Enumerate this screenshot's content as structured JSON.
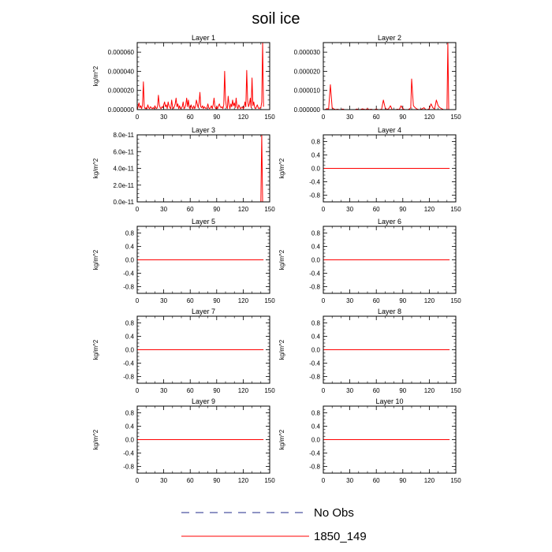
{
  "title": "soil ice",
  "legend": {
    "items": [
      {
        "label": "No Obs",
        "color": "#1f2a8a",
        "dash": "dashed"
      },
      {
        "label": "1850_149",
        "color": "#ff0000",
        "dash": "solid"
      }
    ]
  },
  "chart_data": [
    {
      "type": "line",
      "title": "Layer 1",
      "ylabel": "kg/m^2",
      "xlim": [
        0,
        150
      ],
      "xticks": [
        0,
        30,
        60,
        90,
        120,
        150
      ],
      "ylim": [
        0,
        7e-05
      ],
      "yticks": [
        0,
        2e-05,
        4e-05,
        6e-05
      ],
      "ytick_labels": [
        "0.000000",
        "0.000020",
        "0.000040",
        "0.000060"
      ],
      "series": [
        {
          "name": "1850_149",
          "color": "#ff0000",
          "x": [
            0,
            1,
            2,
            3,
            4,
            5,
            6,
            7,
            8,
            9,
            10,
            11,
            12,
            13,
            14,
            15,
            16,
            17,
            18,
            19,
            20,
            21,
            22,
            23,
            24,
            25,
            26,
            27,
            28,
            29,
            30,
            31,
            32,
            33,
            34,
            35,
            36,
            37,
            38,
            39,
            40,
            41,
            42,
            43,
            44,
            45,
            46,
            47,
            48,
            49,
            50,
            51,
            52,
            53,
            54,
            55,
            56,
            57,
            58,
            59,
            60,
            61,
            62,
            63,
            64,
            65,
            66,
            67,
            68,
            69,
            70,
            71,
            72,
            73,
            74,
            75,
            76,
            77,
            78,
            79,
            80,
            81,
            82,
            83,
            84,
            85,
            86,
            87,
            88,
            89,
            90,
            91,
            92,
            93,
            94,
            95,
            96,
            97,
            98,
            99,
            100,
            101,
            102,
            103,
            104,
            105,
            106,
            107,
            108,
            109,
            110,
            111,
            112,
            113,
            114,
            115,
            116,
            117,
            118,
            119,
            120,
            121,
            122,
            123,
            124,
            125,
            126,
            127,
            128,
            129,
            130,
            131,
            132,
            133,
            134,
            135,
            136,
            137,
            138,
            139,
            140,
            141,
            142,
            143
          ],
          "y": [
            0.0,
            3e-06,
            7e-06,
            2e-06,
            4e-06,
            1e-06,
            5e-06,
            2.9e-05,
            3e-06,
            1e-06,
            2e-06,
            1e-06,
            5e-06,
            2e-06,
            1e-06,
            3e-06,
            2e-06,
            1e-06,
            2e-06,
            1e-06,
            4e-06,
            2e-06,
            1e-06,
            3e-06,
            1.5e-05,
            5e-06,
            2e-06,
            1e-06,
            3e-06,
            2e-06,
            5e-06,
            8e-06,
            3e-06,
            5e-06,
            1e-06,
            8e-06,
            4e-06,
            2e-06,
            1e-06,
            1e-05,
            3e-06,
            1e-06,
            3e-06,
            6e-06,
            1.2e-05,
            3e-06,
            6e-06,
            1e-06,
            4e-06,
            1e-06,
            2e-06,
            3e-06,
            8e-06,
            1e-06,
            2e-06,
            5e-06,
            1.2e-05,
            3e-06,
            1e-05,
            2e-06,
            1e-06,
            5e-06,
            2e-06,
            1e-06,
            4e-06,
            1e-06,
            3e-06,
            1e-05,
            6e-06,
            2e-06,
            7e-06,
            1.8e-05,
            3e-06,
            2e-06,
            4e-06,
            1e-06,
            3e-06,
            2e-06,
            1e-06,
            2e-06,
            6e-06,
            2e-06,
            1e-06,
            2e-06,
            4e-06,
            1e-06,
            5e-06,
            1.2e-05,
            3e-06,
            1e-06,
            3e-06,
            1e-06,
            4e-06,
            6e-06,
            3e-06,
            2e-06,
            3e-06,
            1e-06,
            5e-06,
            4e-05,
            1e-05,
            3e-06,
            1e-06,
            1.4e-05,
            5e-06,
            1e-06,
            6e-06,
            3e-06,
            1e-05,
            4e-06,
            7e-06,
            2e-06,
            1.2e-05,
            3e-06,
            1e-06,
            5e-06,
            3e-06,
            1e-06,
            2e-06,
            3e-06,
            1e-06,
            2e-06,
            8e-06,
            3e-06,
            4.1e-05,
            1e-05,
            3e-06,
            6e-06,
            1.2e-05,
            2e-06,
            3.3e-05,
            4e-06,
            8e-06,
            2e-06,
            1e-06,
            3e-06,
            5e-06,
            2e-06,
            1e-06,
            2e-06,
            2e-06,
            8e-06,
            7e-05,
            3e-06
          ]
        }
      ]
    },
    {
      "type": "line",
      "title": "Layer 2",
      "ylabel": "",
      "xlim": [
        0,
        150
      ],
      "xticks": [
        0,
        30,
        60,
        90,
        120,
        150
      ],
      "ylim": [
        0,
        3.5e-05
      ],
      "yticks": [
        0,
        1e-05,
        2e-05,
        3e-05
      ],
      "ytick_labels": [
        "0.000000",
        "0.000010",
        "0.000020",
        "0.000030"
      ],
      "series": [
        {
          "name": "1850_149",
          "color": "#ff0000",
          "x": [
            0,
            2,
            4,
            6,
            8,
            10,
            12,
            14,
            16,
            18,
            20,
            22,
            24,
            26,
            28,
            30,
            32,
            34,
            36,
            38,
            40,
            42,
            44,
            46,
            48,
            50,
            52,
            54,
            56,
            58,
            60,
            62,
            64,
            66,
            68,
            70,
            72,
            74,
            76,
            78,
            80,
            82,
            84,
            86,
            88,
            90,
            92,
            94,
            96,
            98,
            99,
            100,
            102,
            104,
            106,
            108,
            110,
            112,
            114,
            116,
            118,
            120,
            122,
            124,
            126,
            128,
            130,
            132,
            134,
            136,
            138,
            140,
            141,
            142,
            143
          ],
          "y": [
            0,
            0,
            5e-07,
            3e-07,
            1.3e-05,
            1e-06,
            3e-07,
            0,
            2e-07,
            0,
            0,
            3e-07,
            0,
            0,
            0,
            0,
            0,
            0,
            0,
            3e-07,
            0,
            0,
            4e-07,
            2e-07,
            0,
            5e-07,
            0,
            2e-07,
            0,
            0,
            3e-07,
            0,
            0,
            2e-07,
            5e-06,
            1e-06,
            0,
            5e-07,
            2e-06,
            0,
            0,
            0,
            2e-07,
            0,
            2e-06,
            5e-07,
            0,
            0,
            0,
            5e-07,
            1e-06,
            1.6e-05,
            2e-06,
            1e-06,
            3e-07,
            0,
            0,
            5e-07,
            1e-06,
            0,
            0,
            5e-07,
            3e-06,
            1e-06,
            3e-07,
            5e-06,
            2e-06,
            1e-06,
            5e-07,
            0,
            0,
            0,
            3.5e-05,
            0,
            0
          ]
        }
      ]
    },
    {
      "type": "line",
      "title": "Layer 3",
      "ylabel": "kg/m^2",
      "xlim": [
        0,
        150
      ],
      "xticks": [
        0,
        30,
        60,
        90,
        120,
        150
      ],
      "ylim": [
        0,
        8e-11
      ],
      "yticks": [
        0,
        2e-11,
        4e-11,
        6e-11,
        8e-11
      ],
      "ytick_labels": [
        "0.0e-11",
        "2.0e-11",
        "4.0e-11",
        "6.0e-11",
        "8.0e-11"
      ],
      "series": [
        {
          "name": "1850_149",
          "color": "#ff0000",
          "x": [
            0,
            139,
            140,
            141,
            142,
            143
          ],
          "y": [
            0,
            0,
            0,
            8e-11,
            0,
            0
          ]
        }
      ]
    },
    {
      "type": "line",
      "title": "Layer 4",
      "ylabel": "kg/m^2",
      "xlim": [
        0,
        150
      ],
      "xticks": [
        0,
        30,
        60,
        90,
        120,
        150
      ],
      "ylim": [
        -1,
        1
      ],
      "yticks": [
        -0.8,
        -0.4,
        0,
        0.4,
        0.8
      ],
      "ytick_labels": [
        "-0.8",
        "-0.4",
        "0.0",
        "0.4",
        "0.8"
      ],
      "series": [
        {
          "name": "1850_149",
          "color": "#ff0000",
          "x": [
            0,
            143
          ],
          "y": [
            0,
            0
          ]
        }
      ]
    },
    {
      "type": "line",
      "title": "Layer 5",
      "ylabel": "kg/m^2",
      "xlim": [
        0,
        150
      ],
      "xticks": [
        0,
        30,
        60,
        90,
        120,
        150
      ],
      "ylim": [
        -1,
        1
      ],
      "yticks": [
        -0.8,
        -0.4,
        0,
        0.4,
        0.8
      ],
      "ytick_labels": [
        "-0.8",
        "-0.4",
        "0.0",
        "0.4",
        "0.8"
      ],
      "series": [
        {
          "name": "1850_149",
          "color": "#ff0000",
          "x": [
            0,
            143
          ],
          "y": [
            0,
            0
          ]
        }
      ]
    },
    {
      "type": "line",
      "title": "Layer 6",
      "ylabel": "kg/m^2",
      "xlim": [
        0,
        150
      ],
      "xticks": [
        0,
        30,
        60,
        90,
        120,
        150
      ],
      "ylim": [
        -1,
        1
      ],
      "yticks": [
        -0.8,
        -0.4,
        0,
        0.4,
        0.8
      ],
      "ytick_labels": [
        "-0.8",
        "-0.4",
        "0.0",
        "0.4",
        "0.8"
      ],
      "series": [
        {
          "name": "1850_149",
          "color": "#ff0000",
          "x": [
            0,
            143
          ],
          "y": [
            0,
            0
          ]
        }
      ]
    },
    {
      "type": "line",
      "title": "Layer 7",
      "ylabel": "kg/m^2",
      "xlim": [
        0,
        150
      ],
      "xticks": [
        0,
        30,
        60,
        90,
        120,
        150
      ],
      "ylim": [
        -1,
        1
      ],
      "yticks": [
        -0.8,
        -0.4,
        0,
        0.4,
        0.8
      ],
      "ytick_labels": [
        "-0.8",
        "-0.4",
        "0.0",
        "0.4",
        "0.8"
      ],
      "series": [
        {
          "name": "1850_149",
          "color": "#ff0000",
          "x": [
            0,
            143
          ],
          "y": [
            0,
            0
          ]
        }
      ]
    },
    {
      "type": "line",
      "title": "Layer 8",
      "ylabel": "kg/m^2",
      "xlim": [
        0,
        150
      ],
      "xticks": [
        0,
        30,
        60,
        90,
        120,
        150
      ],
      "ylim": [
        -1,
        1
      ],
      "yticks": [
        -0.8,
        -0.4,
        0,
        0.4,
        0.8
      ],
      "ytick_labels": [
        "-0.8",
        "-0.4",
        "0.0",
        "0.4",
        "0.8"
      ],
      "series": [
        {
          "name": "1850_149",
          "color": "#ff0000",
          "x": [
            0,
            143
          ],
          "y": [
            0,
            0
          ]
        }
      ]
    },
    {
      "type": "line",
      "title": "Layer 9",
      "ylabel": "kg/m^2",
      "xlim": [
        0,
        150
      ],
      "xticks": [
        0,
        30,
        60,
        90,
        120,
        150
      ],
      "ylim": [
        -1,
        1
      ],
      "yticks": [
        -0.8,
        -0.4,
        0,
        0.4,
        0.8
      ],
      "ytick_labels": [
        "-0.8",
        "-0.4",
        "0.0",
        "0.4",
        "0.8"
      ],
      "series": [
        {
          "name": "1850_149",
          "color": "#ff0000",
          "x": [
            0,
            143
          ],
          "y": [
            0,
            0
          ]
        }
      ]
    },
    {
      "type": "line",
      "title": "Layer 10",
      "ylabel": "kg/m^2",
      "xlim": [
        0,
        150
      ],
      "xticks": [
        0,
        30,
        60,
        90,
        120,
        150
      ],
      "ylim": [
        -1,
        1
      ],
      "yticks": [
        -0.8,
        -0.4,
        0,
        0.4,
        0.8
      ],
      "ytick_labels": [
        "-0.8",
        "-0.4",
        "0.0",
        "0.4",
        "0.8"
      ],
      "series": [
        {
          "name": "1850_149",
          "color": "#ff0000",
          "x": [
            0,
            143
          ],
          "y": [
            0,
            0
          ]
        }
      ]
    }
  ]
}
